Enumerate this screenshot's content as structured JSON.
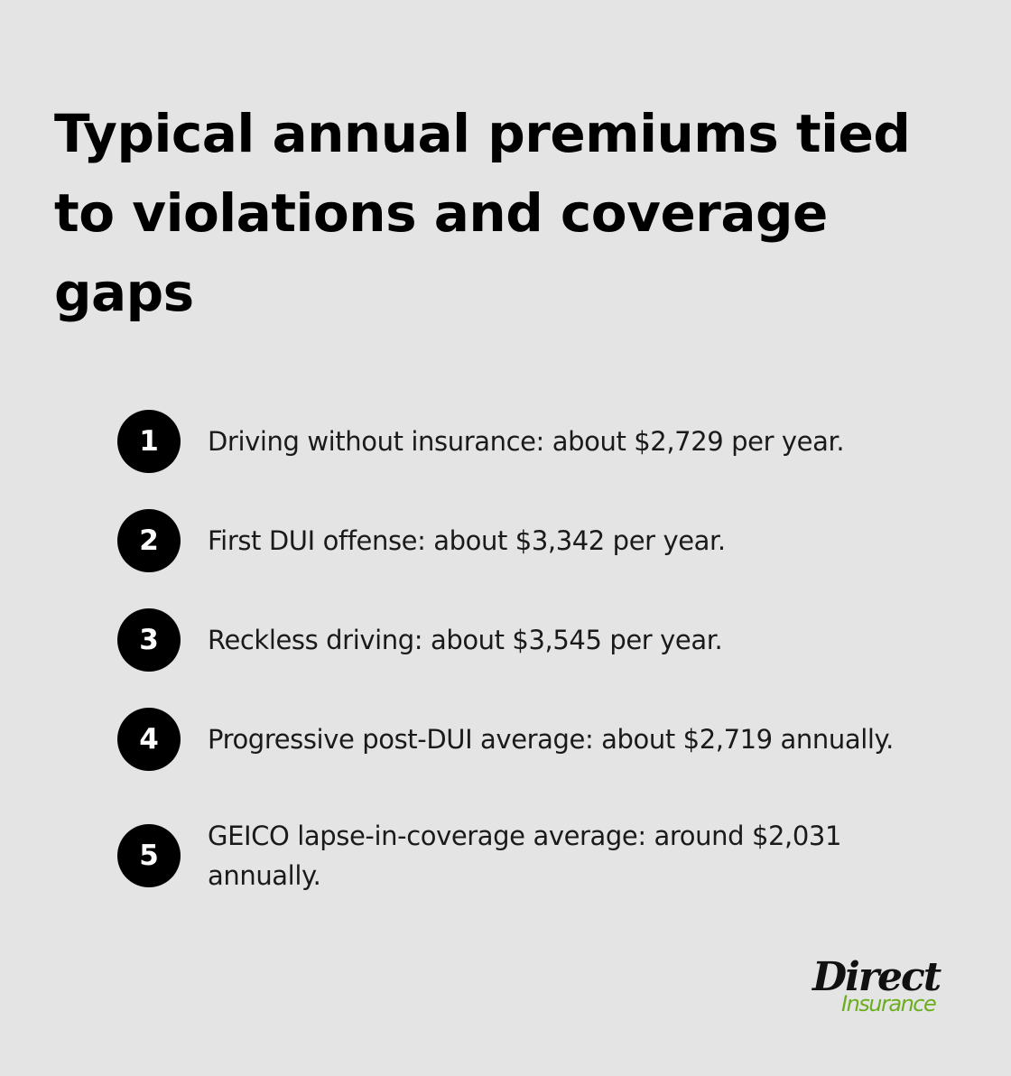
{
  "title": "Typical annual premiums tied to violations and coverage gaps",
  "items": [
    {
      "number": "1",
      "text": "Driving without insurance: about $2,729 per year."
    },
    {
      "number": "2",
      "text": "First DUI offense: about $3,342 per year."
    },
    {
      "number": "3",
      "text": "Reckless driving: about $3,545 per year."
    },
    {
      "number": "4",
      "text": "Progressive post-DUI average: about $2,719 annually."
    },
    {
      "number": "5",
      "text": "GEICO lapse-in-coverage average: around $2,031 annually."
    }
  ],
  "logo": {
    "line1": "Direct",
    "line2": "Insurance",
    "colors": {
      "primary": "#111111",
      "accent": "#6cae1f"
    }
  },
  "colors": {
    "background": "#e3e4e3",
    "badge": "#000000",
    "badge_text": "#ffffff",
    "text": "#1a1a1a"
  }
}
